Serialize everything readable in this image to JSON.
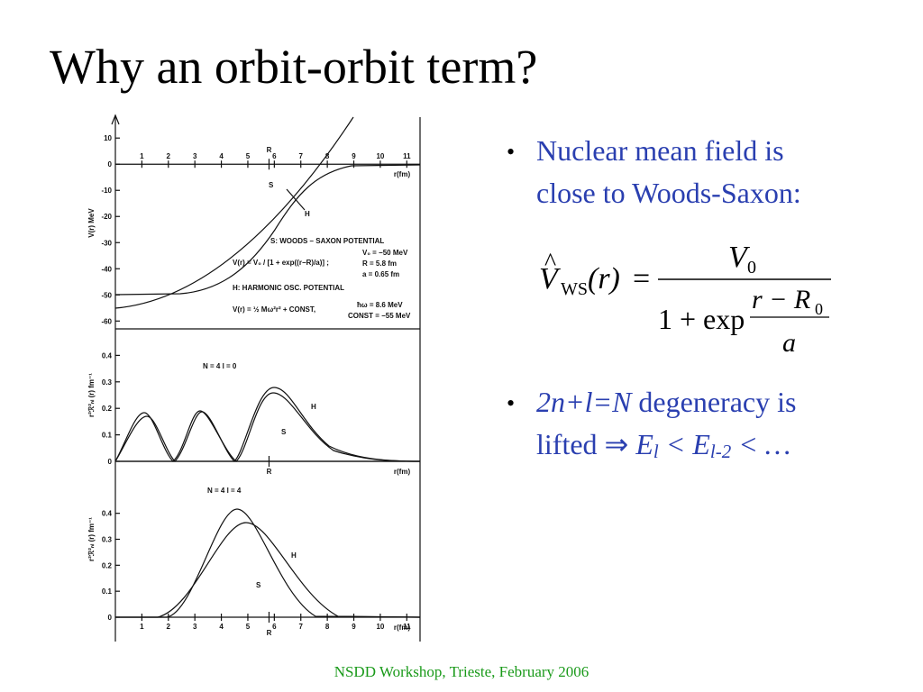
{
  "title": "Why an orbit-orbit term?",
  "figure": {
    "panels": [
      {
        "ylabel": "V(r) MeV",
        "ylim": [
          -63,
          18
        ],
        "yticks": [
          10,
          0,
          -10,
          -20,
          -30,
          -40,
          -50,
          -60
        ],
        "xlim": [
          0,
          11.5
        ],
        "xticks": [
          1,
          2,
          3,
          4,
          5,
          6,
          7,
          8,
          9,
          10,
          11
        ],
        "xlabel": "r(fm)",
        "r_mark": {
          "value": 5.8,
          "label": "R"
        },
        "notes": [
          "S",
          "H",
          "S: WOODS – SAXON POTENTIAL",
          "V(r) = V₀ / [1 + exp((r−R)/a)] ;",
          "V₀ = −50 MeV",
          "R = 5.8 fm",
          "a = 0.65 fm",
          "H: HARMONIC OSC. POTENTIAL",
          "V(r) = ½ Mω²r² + CONST,",
          "ħω = 8.6 MeV",
          "CONST = −55 MeV"
        ]
      },
      {
        "ylabel": "r²ℛ²ₙₗ (r) fm⁻¹",
        "ylim": [
          0,
          0.5
        ],
        "yticks": [
          0,
          0.1,
          0.2,
          0.3,
          0.4
        ],
        "xlim": [
          0,
          11.5
        ],
        "xlabel": "r(fm)",
        "r_mark": {
          "value": 5.8,
          "label": "R"
        },
        "notes": [
          "N = 4   l = 0",
          "H",
          "S"
        ]
      },
      {
        "ylabel": "r²ℛ²ₙₗ (r) fm⁻¹",
        "ylim": [
          0,
          0.6
        ],
        "yticks": [
          0,
          0.1,
          0.2,
          0.3,
          0.4
        ],
        "xlim": [
          0,
          11.5
        ],
        "xticks": [
          1,
          2,
          3,
          4,
          5,
          6,
          7,
          8,
          9,
          10,
          11
        ],
        "xlabel": "r(fm)",
        "r_mark": {
          "value": 5.8,
          "label": "R"
        },
        "notes": [
          "N = 4   l = 4",
          "H",
          "S"
        ]
      }
    ]
  },
  "formula": {
    "lhs": "V",
    "hat": "^",
    "lhs_sub": "WS",
    "arg": "(r)",
    "eq": "=",
    "num": "V",
    "num_sub": "0",
    "den": "1 + exp",
    "inner_num": "r − R",
    "inner_sub": "0",
    "inner_den": "a"
  },
  "bullets": [
    {
      "lines": [
        [
          {
            "text": "Nuclear mean field is",
            "style": "normal"
          }
        ],
        [
          {
            "text": "close to Woods-Saxon:",
            "style": "normal"
          }
        ]
      ]
    },
    {
      "lines": [
        [
          {
            "text": "2n+l=N",
            "style": "italic"
          },
          {
            "text": " degeneracy is",
            "style": "normal"
          }
        ],
        [
          {
            "text": "lifted ",
            "style": "normal"
          },
          {
            "text": "⇒",
            "style": "normal"
          },
          {
            "text": " E",
            "style": "italic"
          },
          {
            "text": "l",
            "style": "italic-sub"
          },
          {
            "text": " < E",
            "style": "italic"
          },
          {
            "text": "l-2",
            "style": "italic-sub"
          },
          {
            "text": " < …",
            "style": "italic"
          }
        ]
      ]
    }
  ],
  "bullet_symbol": "•",
  "footer": "NSDD Workshop, Trieste, February 2006"
}
